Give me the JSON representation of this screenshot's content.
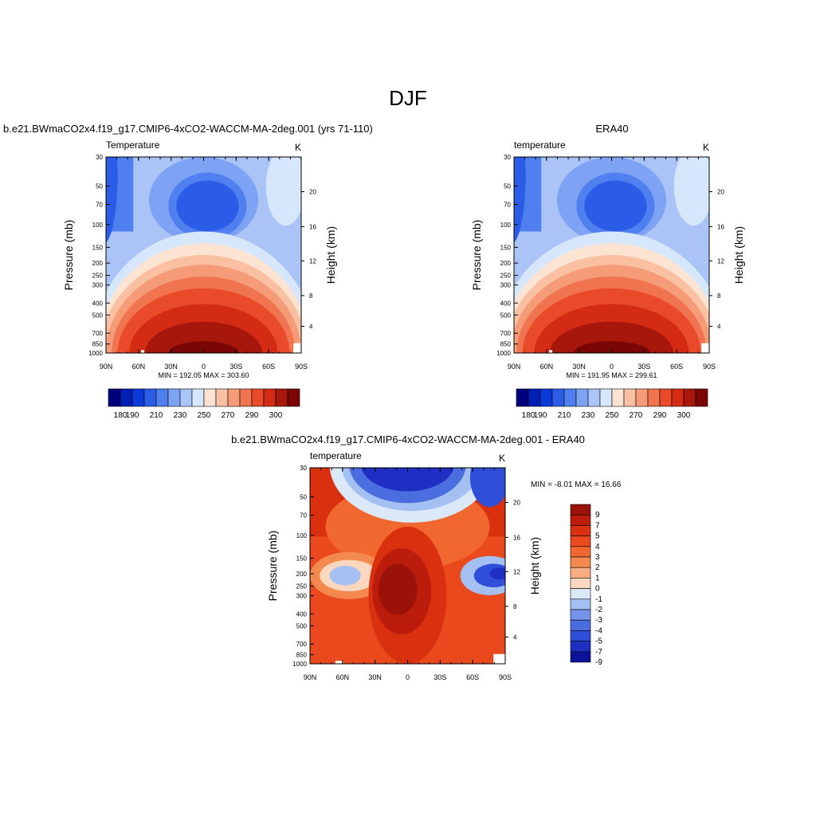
{
  "figure": {
    "title": "DJF",
    "panel1_title": "b.e21.BWmaCO2x4.f19_g17.CMIP6-4xCO2-WACCM-MA-2deg.001 (yrs 71-110)",
    "panel2_title": "ERA40",
    "panel3_title": "b.e21.BWmaCO2x4.f19_g17.CMIP6-4xCO2-WACCM-MA-2deg.001 - ERA40"
  },
  "chart_data": [
    {
      "type": "heatmap",
      "title": "b.e21.BWmaCO2x4.f19_g17.CMIP6-4xCO2-WACCM-MA-2deg.001 (yrs 71-110)",
      "left_label": "Temperature",
      "unit_label": "K",
      "xlabel": "",
      "ylabel": "Pressure (mb)",
      "ylabel_right": "Height (km)",
      "x_ticks": [
        "90N",
        "60N",
        "30N",
        "0",
        "30S",
        "60S",
        "90S"
      ],
      "y_ticks": [
        "30",
        "50",
        "70",
        "100",
        "150",
        "200",
        "250",
        "300",
        "400",
        "500",
        "700",
        "850",
        "1000"
      ],
      "right_ticks": [
        "20",
        "16",
        "12",
        "8",
        "4"
      ],
      "stats": "MIN = 192.05  MAX = 303.60",
      "colorbar": {
        "labels": [
          "180",
          "190",
          "210",
          "230",
          "250",
          "270",
          "290",
          "300"
        ]
      }
    },
    {
      "type": "heatmap",
      "title": "ERA40",
      "left_label": "temperature",
      "unit_label": "K",
      "xlabel": "",
      "ylabel": "Pressure (mb)",
      "ylabel_right": "Height (km)",
      "x_ticks": [
        "90N",
        "60N",
        "30N",
        "0",
        "30S",
        "60S",
        "90S"
      ],
      "y_ticks": [
        "30",
        "50",
        "70",
        "100",
        "150",
        "200",
        "250",
        "300",
        "400",
        "500",
        "700",
        "850",
        "1000"
      ],
      "right_ticks": [
        "20",
        "16",
        "12",
        "8",
        "4"
      ],
      "stats": "MIN = 191.95  MAX = 299.61",
      "colorbar": {
        "labels": [
          "180",
          "190",
          "210",
          "230",
          "250",
          "270",
          "290",
          "300"
        ]
      }
    },
    {
      "type": "heatmap",
      "title": "b.e21.BWmaCO2x4.f19_g17.CMIP6-4xCO2-WACCM-MA-2deg.001 - ERA40",
      "left_label": "temperature",
      "unit_label": "K",
      "xlabel": "",
      "ylabel": "Pressure (mb)",
      "ylabel_right": "Height (km)",
      "x_ticks": [
        "90N",
        "60N",
        "30N",
        "0",
        "30S",
        "60S",
        "90S"
      ],
      "y_ticks": [
        "30",
        "50",
        "70",
        "100",
        "150",
        "200",
        "250",
        "300",
        "400",
        "500",
        "700",
        "850",
        "1000"
      ],
      "right_ticks": [
        "20",
        "16",
        "12",
        "8",
        "4"
      ],
      "stats": "MIN =  -8.01  MAX =  16.66",
      "colorbar": {
        "labels": [
          "9",
          "7",
          "5",
          "4",
          "3",
          "2",
          "1",
          "0",
          "-1",
          "-2",
          "-3",
          "-4",
          "-5",
          "-7",
          "-9"
        ]
      }
    }
  ],
  "colors": {
    "abs_scale": [
      "#00007f",
      "#001fb4",
      "#0a3ad9",
      "#2a5ce8",
      "#5080f0",
      "#7ea3f5",
      "#aac4f8",
      "#d6e6fb",
      "#fde3d2",
      "#f9c0a2",
      "#f59b78",
      "#f17450",
      "#e84a2a",
      "#d32b14",
      "#a8170b",
      "#7a0606"
    ],
    "diff_scale": [
      "#9a1208",
      "#bb1c0c",
      "#d9310f",
      "#e9491c",
      "#f0672f",
      "#f4894f",
      "#f8ad80",
      "#fbd7bf",
      "#dbe8f8",
      "#a4c0f2",
      "#7495ea",
      "#4a6de0",
      "#2f4fd9",
      "#1f2fc4",
      "#0c1599"
    ]
  }
}
